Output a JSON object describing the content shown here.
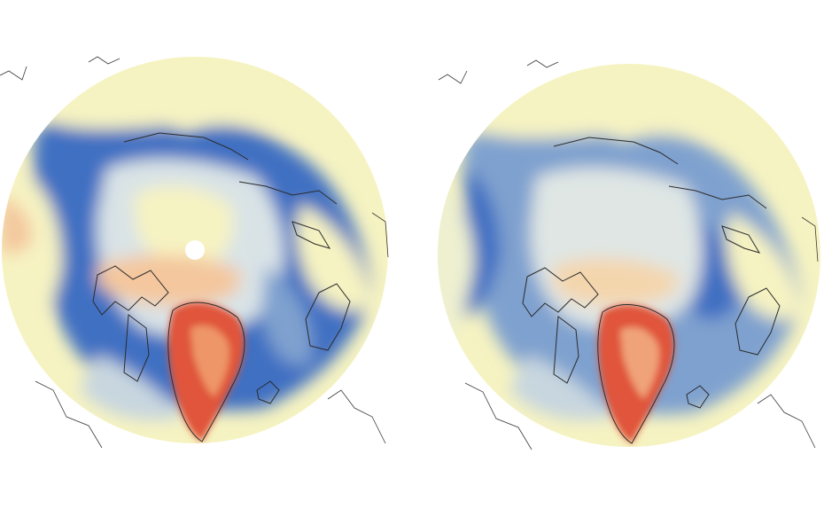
{
  "figure": {
    "panels": [
      {
        "id": "left",
        "has_pole_hole": true
      },
      {
        "id": "right",
        "has_pole_hole": false
      }
    ]
  },
  "colors": {
    "background": "#ffffff",
    "cream": "#f6f3c2",
    "pale_blue": "#c7d6df",
    "mid_blue": "#7fa1cf",
    "deep_blue": "#3f6fc2",
    "peach": "#f4c79e",
    "orange": "#ee9668",
    "red": "#e0543a",
    "coastline": "#2b2b2b"
  }
}
